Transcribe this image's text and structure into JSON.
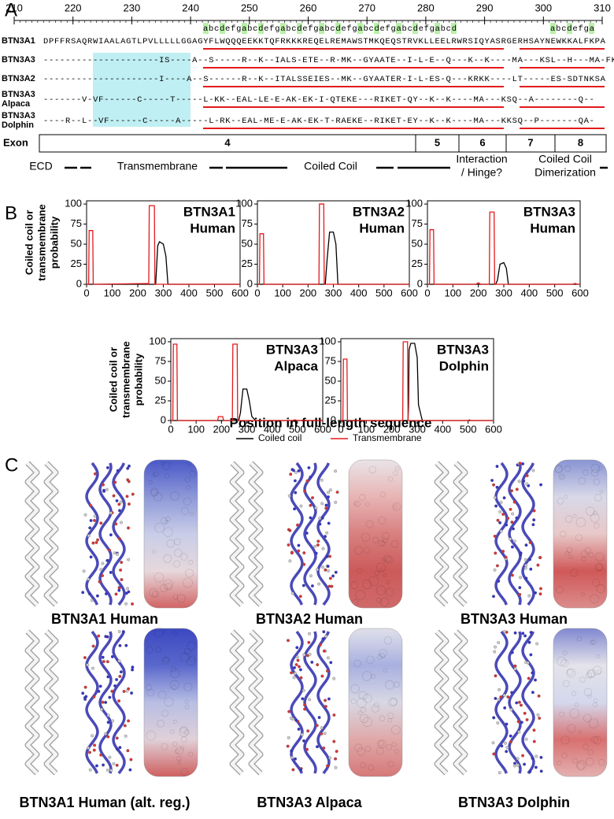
{
  "panel_a": {
    "label": "A",
    "ruler_ticks": [
      210,
      220,
      230,
      240,
      250,
      260,
      270,
      280,
      290,
      300,
      310
    ],
    "heptads": [
      "abcdefgabcdefgabcdefgabcdefgabcdefgabcdefgabcd",
      "abcdefga"
    ],
    "rows": [
      {
        "name": "BTN3A1",
        "sequence": "DPFFRSAQRWIAALAGTLPVLLLLLGGAGYFLWQQQEEKKTQFRKKKREQELREMAWSTMKQEQSTRVKLLEELRWRSIQYASRGERHSAYNEWKKALFKPA"
      },
      {
        "name": "BTN3A3",
        "sequence": "---------------------IS----A--S-----R--K--IALS-ETE--R-MK--GYAATE--I-L-E--Q---K--K----MA---KSL--H---MA-FKPA"
      },
      {
        "name": "BTN3A2",
        "sequence": "---------------------I----A--S------R--K--ITALSSEIES--MK--GYAATER-I-L-ES-Q---KRKK----LT-----ES-SDTNKSA"
      },
      {
        "name": "BTN3A3",
        "species": "Alpaca",
        "sequence": "-------V-VF------C-----T-----L-KK--EAL-LE-E-AK-EK-I-QTEKE---RIKET-QY--K--K----MA---KSQ--A--------Q--"
      },
      {
        "name": "BTN3A3",
        "species": "Dolphin",
        "sequence": "----R--L--VF------C-----A-----L-RK--EAL-ME-E-AK-EK-T-RAEKE--RIKET-EY--K--K----MA---KKSQ--P-------QA-"
      }
    ],
    "exon_label": "Exon",
    "exons": [
      "4",
      "5",
      "6",
      "7",
      "8"
    ],
    "domains": [
      [
        "ECD"
      ],
      [
        "Transmembrane"
      ],
      [
        "Coiled Coil"
      ],
      [
        "Interaction",
        "/ Hinge?"
      ],
      [
        "Coiled Coil",
        "Dimerization"
      ]
    ]
  },
  "panel_b": {
    "label": "B",
    "x_axis_label": "Position in full-length sequence"
  },
  "chart_data": [
    {
      "type": "line",
      "title": "BTN3A1",
      "subtitle": "Human",
      "ylabel": [
        "Coiled coil or",
        "transmembrane",
        "probability"
      ],
      "x": [
        0,
        8,
        10,
        24,
        26,
        240,
        243,
        245,
        265,
        267,
        270,
        278,
        285,
        300,
        310,
        318,
        330,
        600
      ],
      "series": [
        {
          "name": "Coiled coil",
          "color": "#000000",
          "values": [
            0,
            0,
            0,
            0,
            0,
            0,
            0,
            0,
            0,
            0,
            0,
            48,
            53,
            50,
            35,
            0,
            0,
            0
          ]
        },
        {
          "name": "Transmembrane",
          "color": "#e31a1c",
          "values": [
            0,
            0,
            67,
            67,
            0,
            1,
            0,
            98,
            98,
            0,
            0,
            0,
            0,
            0,
            0,
            0,
            0,
            0
          ]
        }
      ],
      "xlim": [
        0,
        600
      ],
      "xticks": [
        0,
        100,
        200,
        300,
        400,
        500,
        600
      ],
      "ylim": [
        0,
        104
      ],
      "yticks": [
        0,
        25,
        50,
        75,
        100
      ]
    },
    {
      "type": "line",
      "title": "BTN3A2",
      "subtitle": "Human",
      "x": [
        0,
        8,
        10,
        24,
        26,
        240,
        243,
        245,
        262,
        264,
        268,
        275,
        285,
        300,
        310,
        318,
        330,
        600
      ],
      "series": [
        {
          "color": "#000000",
          "values": [
            0,
            0,
            0,
            0,
            0,
            0,
            0,
            0,
            0,
            0,
            0,
            30,
            65,
            65,
            50,
            0,
            0,
            0
          ]
        },
        {
          "color": "#e31a1c",
          "values": [
            0,
            0,
            63,
            63,
            0,
            0,
            0,
            100,
            100,
            0,
            0,
            0,
            0,
            0,
            0,
            0,
            0,
            0
          ]
        }
      ],
      "xlim": [
        0,
        600
      ],
      "xticks": [
        0,
        100,
        200,
        300,
        400,
        500,
        600
      ],
      "ylim": [
        0,
        104
      ],
      "yticks": [
        0,
        25,
        50,
        75,
        100
      ]
    },
    {
      "type": "line",
      "title": "BTN3A3",
      "subtitle": "Human",
      "x": [
        0,
        8,
        10,
        24,
        26,
        190,
        200,
        210,
        240,
        243,
        245,
        262,
        264,
        268,
        275,
        285,
        300,
        310,
        318,
        330,
        570,
        580,
        590,
        600
      ],
      "series": [
        {
          "color": "#000000",
          "values": [
            0,
            0,
            0,
            0,
            0,
            0,
            0,
            0,
            0,
            0,
            0,
            0,
            0,
            0,
            5,
            25,
            27,
            20,
            0,
            0,
            0,
            0,
            0,
            0
          ]
        },
        {
          "color": "#e31a1c",
          "values": [
            0,
            0,
            68,
            68,
            0,
            0,
            2,
            0,
            0,
            0,
            90,
            90,
            0,
            0,
            0,
            0,
            0,
            0,
            0,
            0,
            0,
            1,
            0,
            0
          ]
        }
      ],
      "xlim": [
        0,
        600
      ],
      "xticks": [
        0,
        100,
        200,
        300,
        400,
        500,
        600
      ],
      "ylim": [
        0,
        104
      ],
      "yticks": [
        0,
        25,
        50,
        75,
        100
      ]
    },
    {
      "type": "line",
      "title": "BTN3A3",
      "subtitle": "Alpaca",
      "ylabel": [
        "Coiled coil or",
        "transmembrane",
        "probability"
      ],
      "x": [
        0,
        8,
        10,
        24,
        26,
        185,
        188,
        205,
        208,
        240,
        243,
        245,
        262,
        264,
        268,
        275,
        285,
        300,
        310,
        320,
        335,
        480,
        490,
        500,
        600
      ],
      "series": [
        {
          "color": "#000000",
          "values": [
            0,
            0,
            0,
            0,
            0,
            0,
            0,
            0,
            0,
            0,
            0,
            0,
            0,
            0,
            0,
            10,
            40,
            40,
            25,
            5,
            0,
            0,
            0,
            0,
            0
          ]
        },
        {
          "color": "#e31a1c",
          "values": [
            0,
            0,
            97,
            97,
            0,
            0,
            5,
            5,
            0,
            0,
            0,
            97,
            97,
            0,
            0,
            0,
            0,
            0,
            0,
            0,
            0,
            0,
            1,
            0,
            0
          ]
        }
      ],
      "xlim": [
        0,
        600
      ],
      "xticks": [
        0,
        100,
        200,
        300,
        400,
        500,
        600
      ],
      "ylim": [
        0,
        104
      ],
      "yticks": [
        0,
        25,
        50,
        75,
        100
      ]
    },
    {
      "type": "line",
      "title": "BTN3A3",
      "subtitle": "Dolphin",
      "x": [
        0,
        8,
        10,
        24,
        26,
        240,
        243,
        245,
        262,
        264,
        266,
        268,
        275,
        290,
        300,
        305,
        320,
        500,
        505,
        510,
        600
      ],
      "series": [
        {
          "color": "#000000",
          "values": [
            0,
            0,
            0,
            0,
            0,
            0,
            0,
            0,
            0,
            0,
            20,
            90,
            98,
            98,
            80,
            20,
            0,
            0,
            0,
            0,
            0
          ]
        },
        {
          "color": "#e31a1c",
          "values": [
            0,
            0,
            78,
            78,
            0,
            0,
            0,
            100,
            100,
            0,
            0,
            0,
            0,
            0,
            0,
            0,
            0,
            0,
            1,
            0,
            0
          ]
        }
      ],
      "xlim": [
        0,
        600
      ],
      "xticks": [
        0,
        100,
        200,
        300,
        400,
        500,
        600
      ],
      "ylim": [
        0,
        104
      ],
      "yticks": [
        0,
        25,
        50,
        75,
        100
      ]
    }
  ],
  "panel_c": {
    "label": "C",
    "structures": [
      "BTN3A1 Human",
      "BTN3A2 Human",
      "BTN3A3 Human",
      "BTN3A1 Human (alt. reg.)",
      "BTN3A3 Alpaca",
      "BTN3A3 Dolphin"
    ]
  }
}
